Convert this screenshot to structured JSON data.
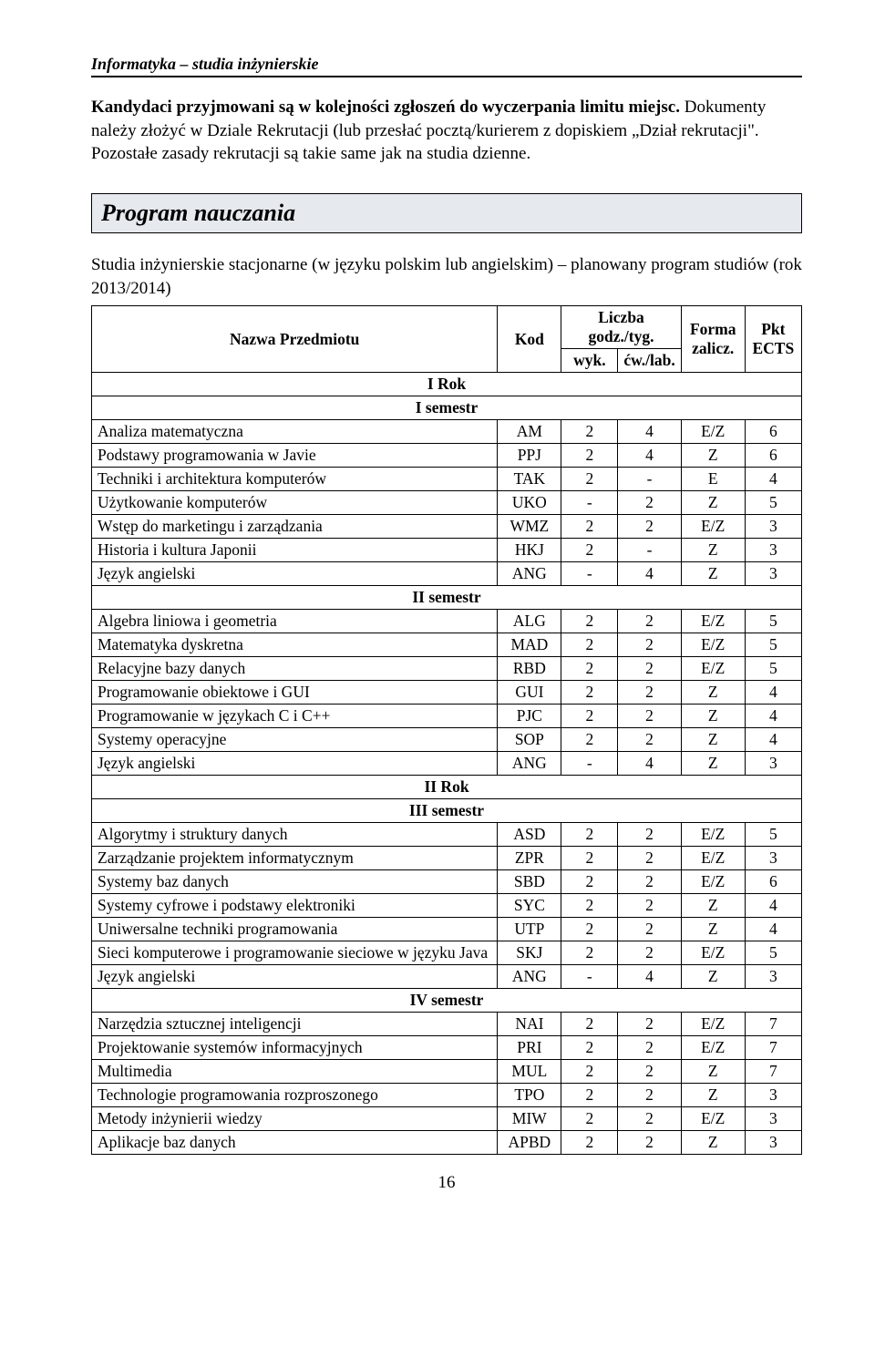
{
  "running_header": "Informatyka – studia inżynierskie",
  "lead_bold": "Kandydaci przyjmowani są w kolejności zgłoszeń do wyczerpania limitu miejsc.",
  "lead_rest": " Dokumenty należy złożyć w Dziale Rekrutacji (lub przesłać pocztą/kurierem z dopiskiem „Dział rekrutacji\". Pozostałe zasady rekrutacji są takie same jak na studia dzienne.",
  "section_title": "Program nauczania",
  "sub_intro": "Studia inżynierskie stacjonarne (w języku polskim lub angielskim) – planowany program studiów (rok 2013/2014)",
  "headers": {
    "name": "Nazwa Przedmiotu",
    "kod": "Kod",
    "liczba": "Liczba godz./tyg.",
    "wyk": "wyk.",
    "cw": "ćw./lab.",
    "forma": "Forma zalicz.",
    "pkt": "Pkt ECTS"
  },
  "rows": [
    {
      "type": "section",
      "label": "I Rok"
    },
    {
      "type": "section",
      "label": "I semestr"
    },
    {
      "type": "row",
      "name": "Analiza matematyczna",
      "kod": "AM",
      "wyk": "2",
      "cw": "4",
      "form": "E/Z",
      "pkt": "6"
    },
    {
      "type": "row",
      "name": "Podstawy programowania w Javie",
      "kod": "PPJ",
      "wyk": "2",
      "cw": "4",
      "form": "Z",
      "pkt": "6"
    },
    {
      "type": "row",
      "name": "Techniki i architektura komputerów",
      "kod": "TAK",
      "wyk": "2",
      "cw": "-",
      "form": "E",
      "pkt": "4"
    },
    {
      "type": "row",
      "name": "Użytkowanie komputerów",
      "kod": "UKO",
      "wyk": "-",
      "cw": "2",
      "form": "Z",
      "pkt": "5"
    },
    {
      "type": "row",
      "name": "Wstęp do marketingu i zarządzania",
      "kod": "WMZ",
      "wyk": "2",
      "cw": "2",
      "form": "E/Z",
      "pkt": "3"
    },
    {
      "type": "row",
      "name": "Historia i kultura Japonii",
      "kod": "HKJ",
      "wyk": "2",
      "cw": "-",
      "form": "Z",
      "pkt": "3"
    },
    {
      "type": "row",
      "name": "Język angielski",
      "kod": "ANG",
      "wyk": "-",
      "cw": "4",
      "form": "Z",
      "pkt": "3"
    },
    {
      "type": "section",
      "label": "II semestr"
    },
    {
      "type": "row",
      "name": "Algebra liniowa i geometria",
      "kod": "ALG",
      "wyk": "2",
      "cw": "2",
      "form": "E/Z",
      "pkt": "5"
    },
    {
      "type": "row",
      "name": "Matematyka dyskretna",
      "kod": "MAD",
      "wyk": "2",
      "cw": "2",
      "form": "E/Z",
      "pkt": "5"
    },
    {
      "type": "row",
      "name": "Relacyjne bazy danych",
      "kod": "RBD",
      "wyk": "2",
      "cw": "2",
      "form": "E/Z",
      "pkt": "5"
    },
    {
      "type": "row",
      "name": "Programowanie obiektowe i GUI",
      "kod": "GUI",
      "wyk": "2",
      "cw": "2",
      "form": "Z",
      "pkt": "4"
    },
    {
      "type": "row",
      "name": "Programowanie w językach C i C++",
      "kod": "PJC",
      "wyk": "2",
      "cw": "2",
      "form": "Z",
      "pkt": "4"
    },
    {
      "type": "row",
      "name": "Systemy operacyjne",
      "kod": "SOP",
      "wyk": "2",
      "cw": "2",
      "form": "Z",
      "pkt": "4"
    },
    {
      "type": "row",
      "name": "Język angielski",
      "kod": "ANG",
      "wyk": "-",
      "cw": "4",
      "form": "Z",
      "pkt": "3"
    },
    {
      "type": "section",
      "label": "II Rok"
    },
    {
      "type": "section",
      "label": "III semestr"
    },
    {
      "type": "row",
      "name": "Algorytmy i struktury danych",
      "kod": "ASD",
      "wyk": "2",
      "cw": "2",
      "form": "E/Z",
      "pkt": "5"
    },
    {
      "type": "row",
      "name": "Zarządzanie projektem informatycznym",
      "kod": "ZPR",
      "wyk": "2",
      "cw": "2",
      "form": "E/Z",
      "pkt": "3"
    },
    {
      "type": "row",
      "name": "Systemy baz danych",
      "kod": "SBD",
      "wyk": "2",
      "cw": "2",
      "form": "E/Z",
      "pkt": "6"
    },
    {
      "type": "row",
      "name": "Systemy cyfrowe i podstawy elektroniki",
      "kod": "SYC",
      "wyk": "2",
      "cw": "2",
      "form": "Z",
      "pkt": "4"
    },
    {
      "type": "row",
      "name": "Uniwersalne techniki programowania",
      "kod": "UTP",
      "wyk": "2",
      "cw": "2",
      "form": "Z",
      "pkt": "4"
    },
    {
      "type": "row",
      "name": "Sieci komputerowe i programowanie sieciowe w języku Java",
      "kod": "SKJ",
      "wyk": "2",
      "cw": "2",
      "form": "E/Z",
      "pkt": "5"
    },
    {
      "type": "row",
      "name": "Język angielski",
      "kod": "ANG",
      "wyk": "-",
      "cw": "4",
      "form": "Z",
      "pkt": "3"
    },
    {
      "type": "section",
      "label": "IV semestr"
    },
    {
      "type": "row",
      "name": "Narzędzia sztucznej inteligencji",
      "kod": "NAI",
      "wyk": "2",
      "cw": "2",
      "form": "E/Z",
      "pkt": "7"
    },
    {
      "type": "row",
      "name": "Projektowanie systemów informacyjnych",
      "kod": "PRI",
      "wyk": "2",
      "cw": "2",
      "form": "E/Z",
      "pkt": "7"
    },
    {
      "type": "row",
      "name": "Multimedia",
      "kod": "MUL",
      "wyk": "2",
      "cw": "2",
      "form": "Z",
      "pkt": "7"
    },
    {
      "type": "row",
      "name": "Technologie programowania rozproszonego",
      "kod": "TPO",
      "wyk": "2",
      "cw": "2",
      "form": "Z",
      "pkt": "3"
    },
    {
      "type": "row",
      "name": "Metody inżynierii wiedzy",
      "kod": "MIW",
      "wyk": "2",
      "cw": "2",
      "form": "E/Z",
      "pkt": "3"
    },
    {
      "type": "row",
      "name": "Aplikacje baz danych",
      "kod": "APBD",
      "wyk": "2",
      "cw": "2",
      "form": "Z",
      "pkt": "3"
    }
  ],
  "page_number": "16"
}
